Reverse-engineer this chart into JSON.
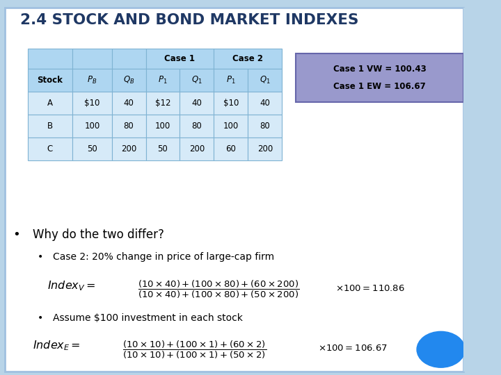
{
  "title": "2.4 STOCK AND BOND MARKET INDEXES",
  "title_color": "#1F3864",
  "bg_color": "#FFFFFF",
  "outer_bg": "#B8D4E8",
  "table_header_color": "#AED6F1",
  "table_row_color": "#D6EAF8",
  "table_border_color": "#7FB3D3",
  "case_box_color": "#9999CC",
  "case1_vw": "Case 1 VW = 100.43",
  "case1_ew": "Case 1 EW = 106.67",
  "bullet1": "Why do the two differ?",
  "bullet2": "Case 2: 20% change in price of large-cap firm",
  "bullet3": "Assume $100 investment in each stock",
  "table_rows": [
    [
      "A",
      "$10",
      "40",
      "$12",
      "40",
      "$10",
      "40"
    ],
    [
      "B",
      "100",
      "80",
      "100",
      "80",
      "100",
      "80"
    ],
    [
      "C",
      "50",
      "200",
      "50",
      "200",
      "60",
      "200"
    ]
  ]
}
